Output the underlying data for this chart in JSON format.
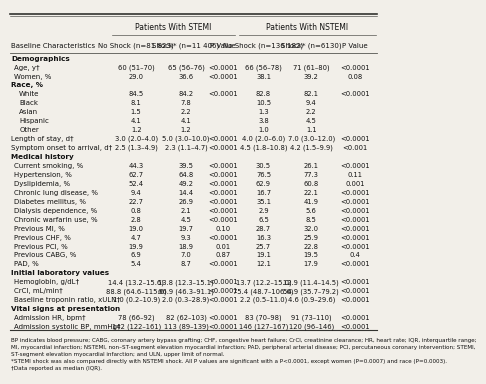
{
  "col_headers": [
    "Baseline Characteristics",
    "No Shock (n=81 823)",
    "Shock* (n=11 406)",
    "P Value",
    "No Shock (n=136 182)",
    "Shock* (n=6130)",
    "P Value"
  ],
  "rows": [
    {
      "label": "Demographics",
      "section": true,
      "v": [
        "",
        "",
        "",
        "",
        "",
        ""
      ]
    },
    {
      "label": "Age, y†",
      "indent": true,
      "v": [
        "60 (51–70)",
        "65 (56–76)",
        "<0.0001",
        "66 (56–78)",
        "71 (61–80)",
        "<0.0001"
      ]
    },
    {
      "label": "Women, %",
      "indent": true,
      "v": [
        "29.0",
        "36.6",
        "<0.0001",
        "38.1",
        "39.2",
        "0.08"
      ]
    },
    {
      "label": "Race, %",
      "section": true,
      "v": [
        "",
        "",
        "",
        "",
        "",
        ""
      ]
    },
    {
      "label": "White",
      "indent": true,
      "extra": true,
      "v": [
        "84.5",
        "84.2",
        "<0.0001",
        "82.8",
        "82.1",
        "<0.0001"
      ]
    },
    {
      "label": "Black",
      "indent": true,
      "extra": true,
      "v": [
        "8.1",
        "7.8",
        "",
        "10.5",
        "9.4",
        ""
      ]
    },
    {
      "label": "Asian",
      "indent": true,
      "extra": true,
      "v": [
        "1.5",
        "2.2",
        "",
        "1.3",
        "2.2",
        ""
      ]
    },
    {
      "label": "Hispanic",
      "indent": true,
      "extra": true,
      "v": [
        "4.1",
        "4.1",
        "",
        "3.8",
        "4.5",
        ""
      ]
    },
    {
      "label": "Other",
      "indent": true,
      "extra": true,
      "v": [
        "1.2",
        "1.2",
        "",
        "1.0",
        "1.1",
        ""
      ]
    },
    {
      "label": "Length of stay, d†",
      "indent": false,
      "v": [
        "3.0 (2.0–4.0)",
        "5.0 (3.0–10.0)",
        "<0.0001",
        "4.0 (2.0–6.0)",
        "7.0 (3.0–12.0)",
        "<0.0001"
      ]
    },
    {
      "label": "Symptom onset to arrival, d†",
      "indent": false,
      "v": [
        "2.5 (1.3–4.9)",
        "2.3 (1.1–4.7)",
        "<0.0001",
        "4.5 (1.8–10.8)",
        "4.2 (1.5–9.9)",
        "<0.001"
      ]
    },
    {
      "label": "Medical history",
      "section": true,
      "v": [
        "",
        "",
        "",
        "",
        "",
        ""
      ]
    },
    {
      "label": "Current smoking, %",
      "indent": true,
      "v": [
        "44.3",
        "39.5",
        "<0.0001",
        "30.5",
        "26.1",
        "<0.0001"
      ]
    },
    {
      "label": "Hypertension, %",
      "indent": true,
      "v": [
        "62.7",
        "64.8",
        "<0.0001",
        "76.5",
        "77.3",
        "0.11"
      ]
    },
    {
      "label": "Dyslipidemia, %",
      "indent": true,
      "v": [
        "52.4",
        "49.2",
        "<0.0001",
        "62.9",
        "60.8",
        "0.001"
      ]
    },
    {
      "label": "Chronic lung disease, %",
      "indent": true,
      "v": [
        "9.4",
        "14.4",
        "<0.0001",
        "16.7",
        "22.1",
        "<0.0001"
      ]
    },
    {
      "label": "Diabetes mellitus, %",
      "indent": true,
      "v": [
        "22.7",
        "26.9",
        "<0.0001",
        "35.1",
        "41.9",
        "<0.0001"
      ]
    },
    {
      "label": "Dialysis dependence, %",
      "indent": true,
      "v": [
        "0.8",
        "2.1",
        "<0.0001",
        "2.9",
        "5.6",
        "<0.0001"
      ]
    },
    {
      "label": "Chronic warfarin use, %",
      "indent": true,
      "v": [
        "2.8",
        "4.5",
        "<0.0001",
        "6.5",
        "8.5",
        "<0.0001"
      ]
    },
    {
      "label": "Previous MI, %",
      "indent": true,
      "v": [
        "19.0",
        "19.7",
        "0.10",
        "28.7",
        "32.0",
        "<0.0001"
      ]
    },
    {
      "label": "Previous CHF, %",
      "indent": true,
      "v": [
        "4.7",
        "9.3",
        "<0.0001",
        "16.3",
        "25.9",
        "<0.0001"
      ]
    },
    {
      "label": "Previous PCI, %",
      "indent": true,
      "v": [
        "19.9",
        "18.9",
        "0.01",
        "25.7",
        "22.8",
        "<0.0001"
      ]
    },
    {
      "label": "Previous CABG, %",
      "indent": true,
      "v": [
        "6.9",
        "7.0",
        "0.87",
        "19.1",
        "19.5",
        "0.4"
      ]
    },
    {
      "label": "PAD, %",
      "indent": true,
      "v": [
        "5.4",
        "8.7",
        "<0.0001",
        "12.1",
        "17.9",
        "<0.0001"
      ]
    },
    {
      "label": "Initial laboratory values",
      "section": true,
      "v": [
        "",
        "",
        "",
        "",
        "",
        ""
      ]
    },
    {
      "label": "Hemoglobin, g/dL†",
      "indent": true,
      "v": [
        "14.4 (13.2–15.6)",
        "13.8 (12.3–15.1)",
        "<0.0001",
        "13.7 (12.2–15.0)",
        "12.9 (11.4–14.5)",
        "<0.0001"
      ]
    },
    {
      "label": "CrCl, mL/min†",
      "indent": true,
      "v": [
        "88.8 (64.6–115.6)",
        "66.9 (46.3–91.1)",
        "<0.0001",
        "75.4 (48.7–106.6)",
        "54.9 (35.7–79.2)",
        "<0.0001"
      ]
    },
    {
      "label": "Baseline troponin ratio, xULN†",
      "indent": true,
      "v": [
        "1.0 (0.2–10.9)",
        "2.0 (0.3–28.9)",
        "<0.0001",
        "2.2 (0.5–11.0)",
        "4.6 (0.9–29.6)",
        "<0.0001"
      ]
    },
    {
      "label": "Vital signs at presentation",
      "section": true,
      "v": [
        "",
        "",
        "",
        "",
        "",
        ""
      ]
    },
    {
      "label": "Admission HR, bpm†",
      "indent": true,
      "v": [
        "78 (66–92)",
        "82 (62–103)",
        "<0.0001",
        "83 (70–98)",
        "91 (73–110)",
        "<0.0001"
      ]
    },
    {
      "label": "Admission systolic BP, mmHg†",
      "indent": true,
      "v": [
        "142 (122–161)",
        "113 (89–139)",
        "<0.0001",
        "146 (127–167)",
        "120 (96–146)",
        "<0.0001"
      ]
    }
  ],
  "footnotes": [
    "BP indicates blood pressure; CABG, coronary artery bypass grafting; CHF, congestive heart failure; CrCl, creatinine clearance; HR, heart rate; IQR, interquartile range;",
    "MI, myocardial infarction; NSTEMI, non–ST-segment elevation myocardial infarction; PAD, peripheral arterial disease; PCI, percutaneous coronary intervention; STEMI,",
    "ST-segment elevation myocardial infarction; and ULN, upper limit of normal.",
    "*STEMI shock was also compared directly with NSTEMI shock. All P values are significant with a P<0.0001, except women (P=0.0007) and race (P=0.0003).",
    "†Data reported as median (IQR)."
  ],
  "bg_color": "#f2efe9",
  "line_color": "#555550",
  "text_color": "#111111"
}
